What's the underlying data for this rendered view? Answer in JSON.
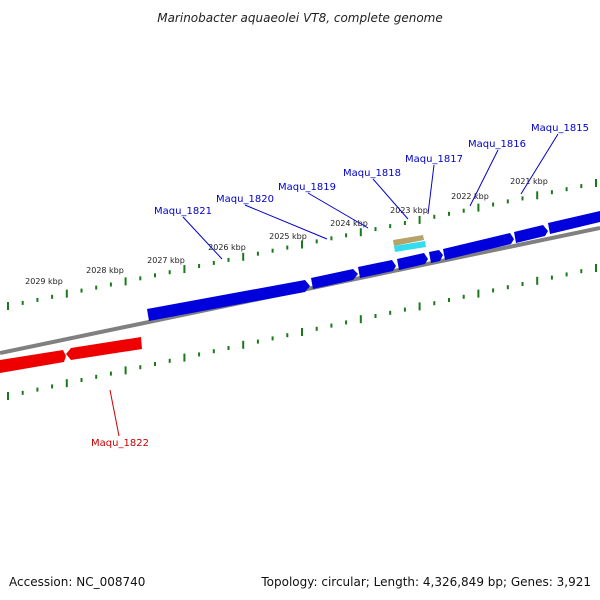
{
  "title": "Marinobacter aquaeolei VT8, complete genome",
  "footer": {
    "accession": "Accession: NC_008740",
    "summary": "Topology: circular; Length: 4,326,849 bp; Genes: 3,921"
  },
  "colors": {
    "forward_gene": "#0000dd",
    "reverse_gene": "#ee0000",
    "backbone": "#808080",
    "tick": "#1a7a1a",
    "label_forward": "#0000cc",
    "label_reverse": "#cc0000",
    "feature_tan": "#b5a36a",
    "feature_cyan": "#33ddee"
  },
  "ruler": [
    "2029 kbp",
    "2028 kbp",
    "2027 kbp",
    "2026 kbp",
    "2025 kbp",
    "2024 kbp",
    "2023 kbp",
    "2022 kbp",
    "2021 kbp"
  ],
  "genes": [
    {
      "name": "Maqu_1815",
      "strand": "+"
    },
    {
      "name": "Maqu_1816",
      "strand": "+"
    },
    {
      "name": "Maqu_1817",
      "strand": "+"
    },
    {
      "name": "Maqu_1818",
      "strand": "+"
    },
    {
      "name": "Maqu_1819",
      "strand": "+"
    },
    {
      "name": "Maqu_1820",
      "strand": "+"
    },
    {
      "name": "Maqu_1821",
      "strand": "+"
    },
    {
      "name": "Maqu_1822",
      "strand": "-"
    }
  ]
}
